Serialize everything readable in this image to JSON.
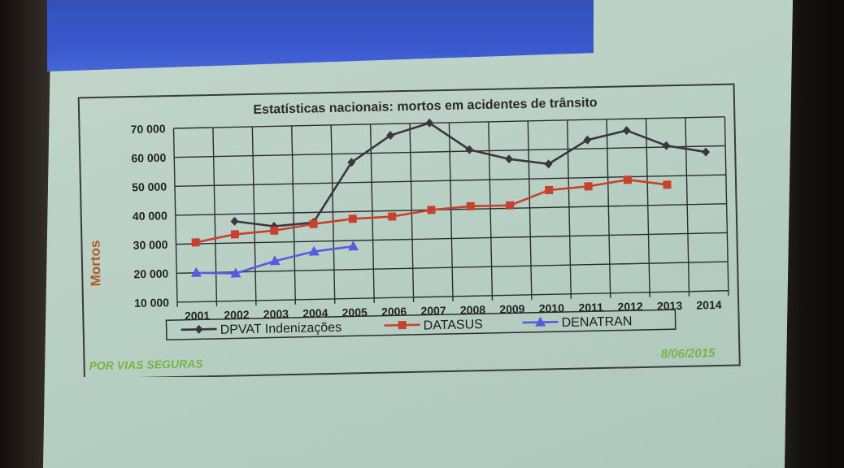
{
  "slide": {
    "footer_left": "POR VIAS SEGURAS",
    "footer_right": "8/06/2015"
  },
  "colors": {
    "dpvat": "#3b3540",
    "datasus": "#c8402e",
    "denatran": "#5a5ae0",
    "axis_label": "#b05a28",
    "footer": "#79b24a"
  },
  "chart_data": {
    "type": "line",
    "title": "Estatísticas nacionais: mortos em acidentes de trânsito",
    "ylabel": "Mortos",
    "xlabel": "",
    "categories": [
      "2001",
      "2002",
      "2003",
      "2004",
      "2005",
      "2006",
      "2007",
      "2008",
      "2009",
      "2010",
      "2011",
      "2012",
      "2013",
      "2014"
    ],
    "ylim": [
      10000,
      70000
    ],
    "yticks": [
      "10 000",
      "20 000",
      "30 000",
      "40 000",
      "50 000",
      "60 000",
      "70 000"
    ],
    "grid": true,
    "legend_position": "bottom",
    "series": [
      {
        "name": "DPVAT Indenizações",
        "marker": "diamond",
        "color": "#3b3540",
        "values": [
          null,
          37500,
          35500,
          36500,
          57000,
          66000,
          70000,
          60500,
          57000,
          55000,
          63000,
          66000,
          60500,
          58000
        ]
      },
      {
        "name": "DATASUS",
        "marker": "square",
        "color": "#c8402e",
        "values": [
          30500,
          33000,
          34000,
          36000,
          37500,
          38000,
          40000,
          41000,
          41000,
          46000,
          47000,
          49000,
          47000,
          null
        ]
      },
      {
        "name": "DENATRAN",
        "marker": "triangle",
        "color": "#5a5ae0",
        "values": [
          20000,
          19500,
          23500,
          26500,
          28000,
          null,
          null,
          null,
          null,
          null,
          null,
          null,
          null,
          null
        ]
      }
    ]
  }
}
